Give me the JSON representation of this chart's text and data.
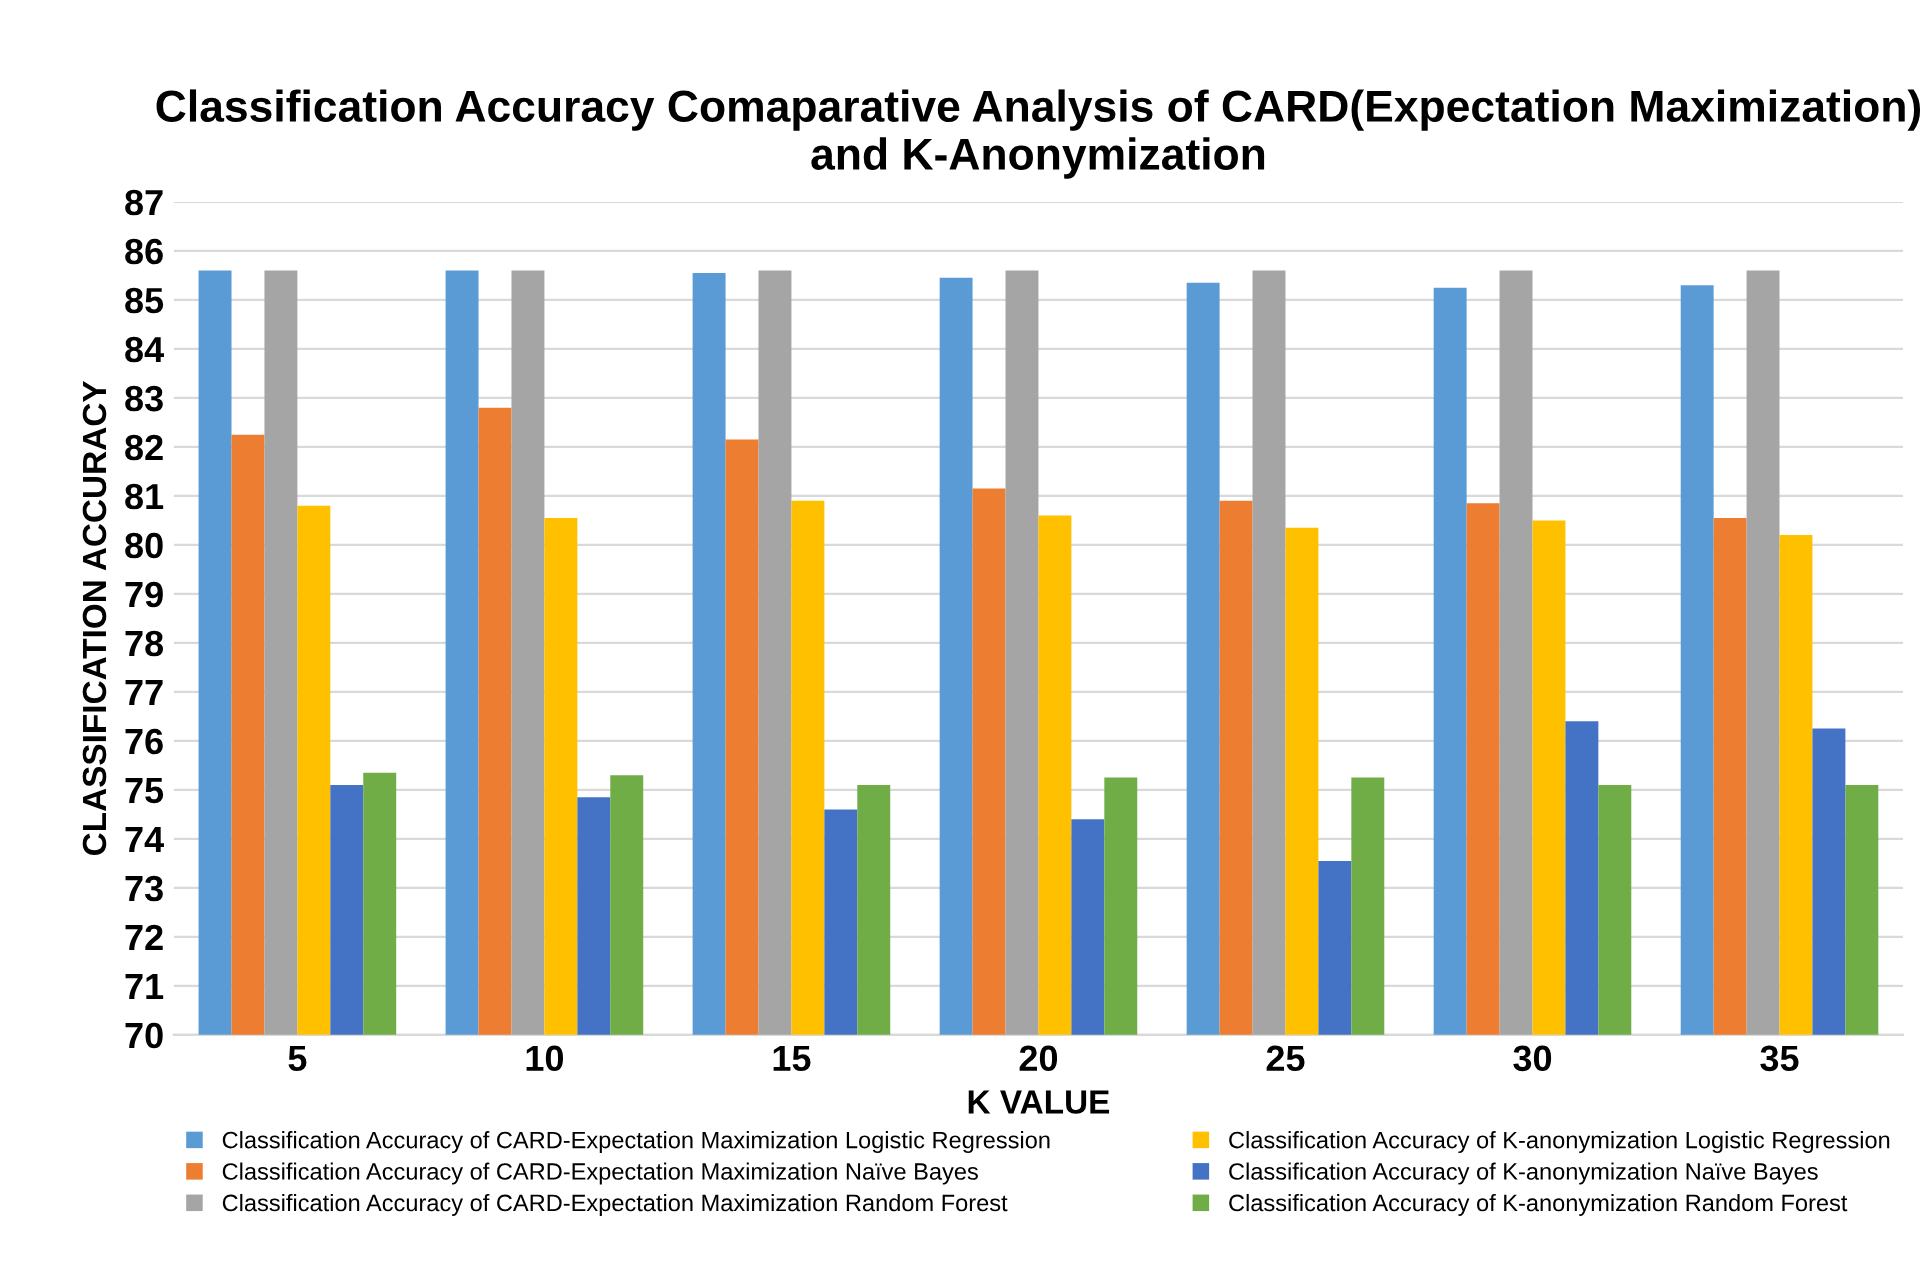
{
  "chart_data": {
    "type": "bar",
    "title": "Classification Accuracy Comaparative Analysis of CARD(Expectation Maximization) and K-Anonymization",
    "xlabel": "K VALUE",
    "ylabel": "CLASSIFICATION ACCURACY",
    "categories": [
      "5",
      "10",
      "15",
      "20",
      "25",
      "30",
      "35"
    ],
    "ylim": [
      70,
      87
    ],
    "yticks": [
      70,
      71,
      72,
      73,
      74,
      75,
      76,
      77,
      78,
      79,
      80,
      81,
      82,
      83,
      84,
      85,
      86,
      87
    ],
    "grid": "y",
    "legend": "bottom",
    "series": [
      {
        "name": "Classification Accuracy of CARD-Expectation Maximization Logistic Regression",
        "color": "#5b9bd5",
        "values": [
          85.6,
          85.6,
          85.55,
          85.45,
          85.35,
          85.25,
          85.3
        ]
      },
      {
        "name": "Classification Accuracy of CARD-Expectation Maximization Naïve Bayes",
        "color": "#ed7d31",
        "values": [
          82.25,
          82.8,
          82.15,
          81.15,
          80.9,
          80.85,
          80.55
        ]
      },
      {
        "name": "Classification Accuracy of CARD-Expectation Maximization Random Forest",
        "color": "#a5a5a5",
        "values": [
          85.6,
          85.6,
          85.6,
          85.6,
          85.6,
          85.6,
          85.6
        ]
      },
      {
        "name": "Classification Accuracy of K-anonymization Logistic Regression",
        "color": "#ffc000",
        "values": [
          80.8,
          80.55,
          80.9,
          80.6,
          80.35,
          80.5,
          80.2
        ]
      },
      {
        "name": "Classification Accuracy of K-anonymization Naïve Bayes",
        "color": "#4472c4",
        "values": [
          75.1,
          74.85,
          74.6,
          74.4,
          73.55,
          76.4,
          76.25
        ]
      },
      {
        "name": "Classification Accuracy of K-anonymization Random Forest",
        "color": "#70ad47",
        "values": [
          75.35,
          75.3,
          75.1,
          75.25,
          75.25,
          75.1,
          75.1
        ]
      }
    ]
  }
}
